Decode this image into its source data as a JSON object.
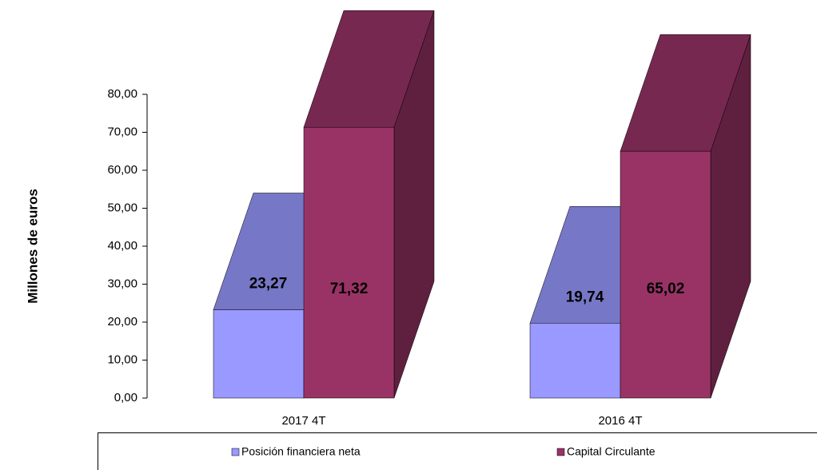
{
  "chart_data": {
    "type": "bar3d",
    "y_label": "Millones de euros",
    "categories": [
      "2017 4T",
      "2016 4T"
    ],
    "series": [
      {
        "name": "Posición financiera neta",
        "color": "#9999ff",
        "values": [
          23.27,
          19.74
        ],
        "value_labels": [
          "23,27",
          "19,74"
        ]
      },
      {
        "name": "Capital Circulante",
        "color": "#993366",
        "values": [
          71.32,
          65.02
        ],
        "value_labels": [
          "71,32",
          "65,02"
        ]
      }
    ],
    "ylim": [
      0,
      80
    ],
    "yticks": [
      {
        "value": 0,
        "label": "0,00"
      },
      {
        "value": 10,
        "label": "10,00"
      },
      {
        "value": 20,
        "label": "20,00"
      },
      {
        "value": 30,
        "label": "30,00"
      },
      {
        "value": 40,
        "label": "40,00"
      },
      {
        "value": 50,
        "label": "50,00"
      },
      {
        "value": 60,
        "label": "60,00"
      },
      {
        "value": 70,
        "label": "70,00"
      },
      {
        "value": 80,
        "label": "80,00"
      }
    ],
    "legend": "bottom"
  }
}
